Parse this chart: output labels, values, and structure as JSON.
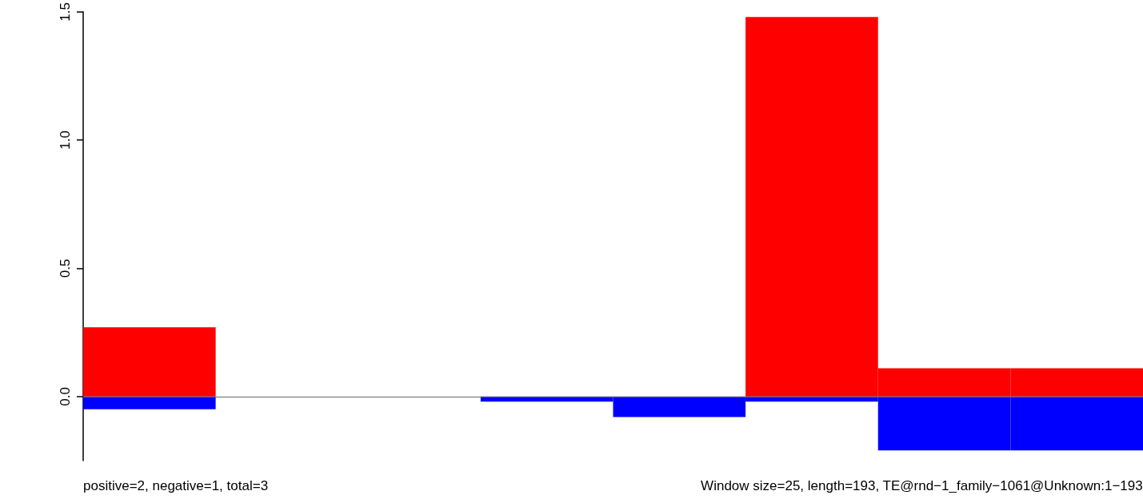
{
  "chart_data": {
    "type": "bar",
    "stacked": true,
    "categories": [
      null,
      null,
      null,
      null,
      null,
      null,
      null,
      null
    ],
    "series": [
      {
        "color": "#ff0000",
        "values": [
          0.27,
          0,
          0,
          0,
          0,
          1.48,
          0.11,
          0.11
        ]
      },
      {
        "color": "#0000ff",
        "values": [
          -0.05,
          0,
          0,
          -0.02,
          -0.08,
          -0.02,
          -0.21,
          -0.21
        ]
      }
    ],
    "ylim": [
      -0.25,
      1.5
    ],
    "yticks": [
      {
        "value": 0,
        "label": "0.0"
      },
      {
        "value": 0.5,
        "label": "0.5"
      },
      {
        "value": 1,
        "label": "1.0"
      },
      {
        "value": 1.5,
        "label": "1.5"
      }
    ],
    "ref_lines": [
      {
        "axis": "y",
        "value": 0,
        "color": "#666666"
      }
    ],
    "annotations": [
      "positive=2, negative=1, total=3",
      "Window size=25, length=193, TE@rnd−1_family−1061@Unknown:1−193"
    ],
    "grid": false
  }
}
